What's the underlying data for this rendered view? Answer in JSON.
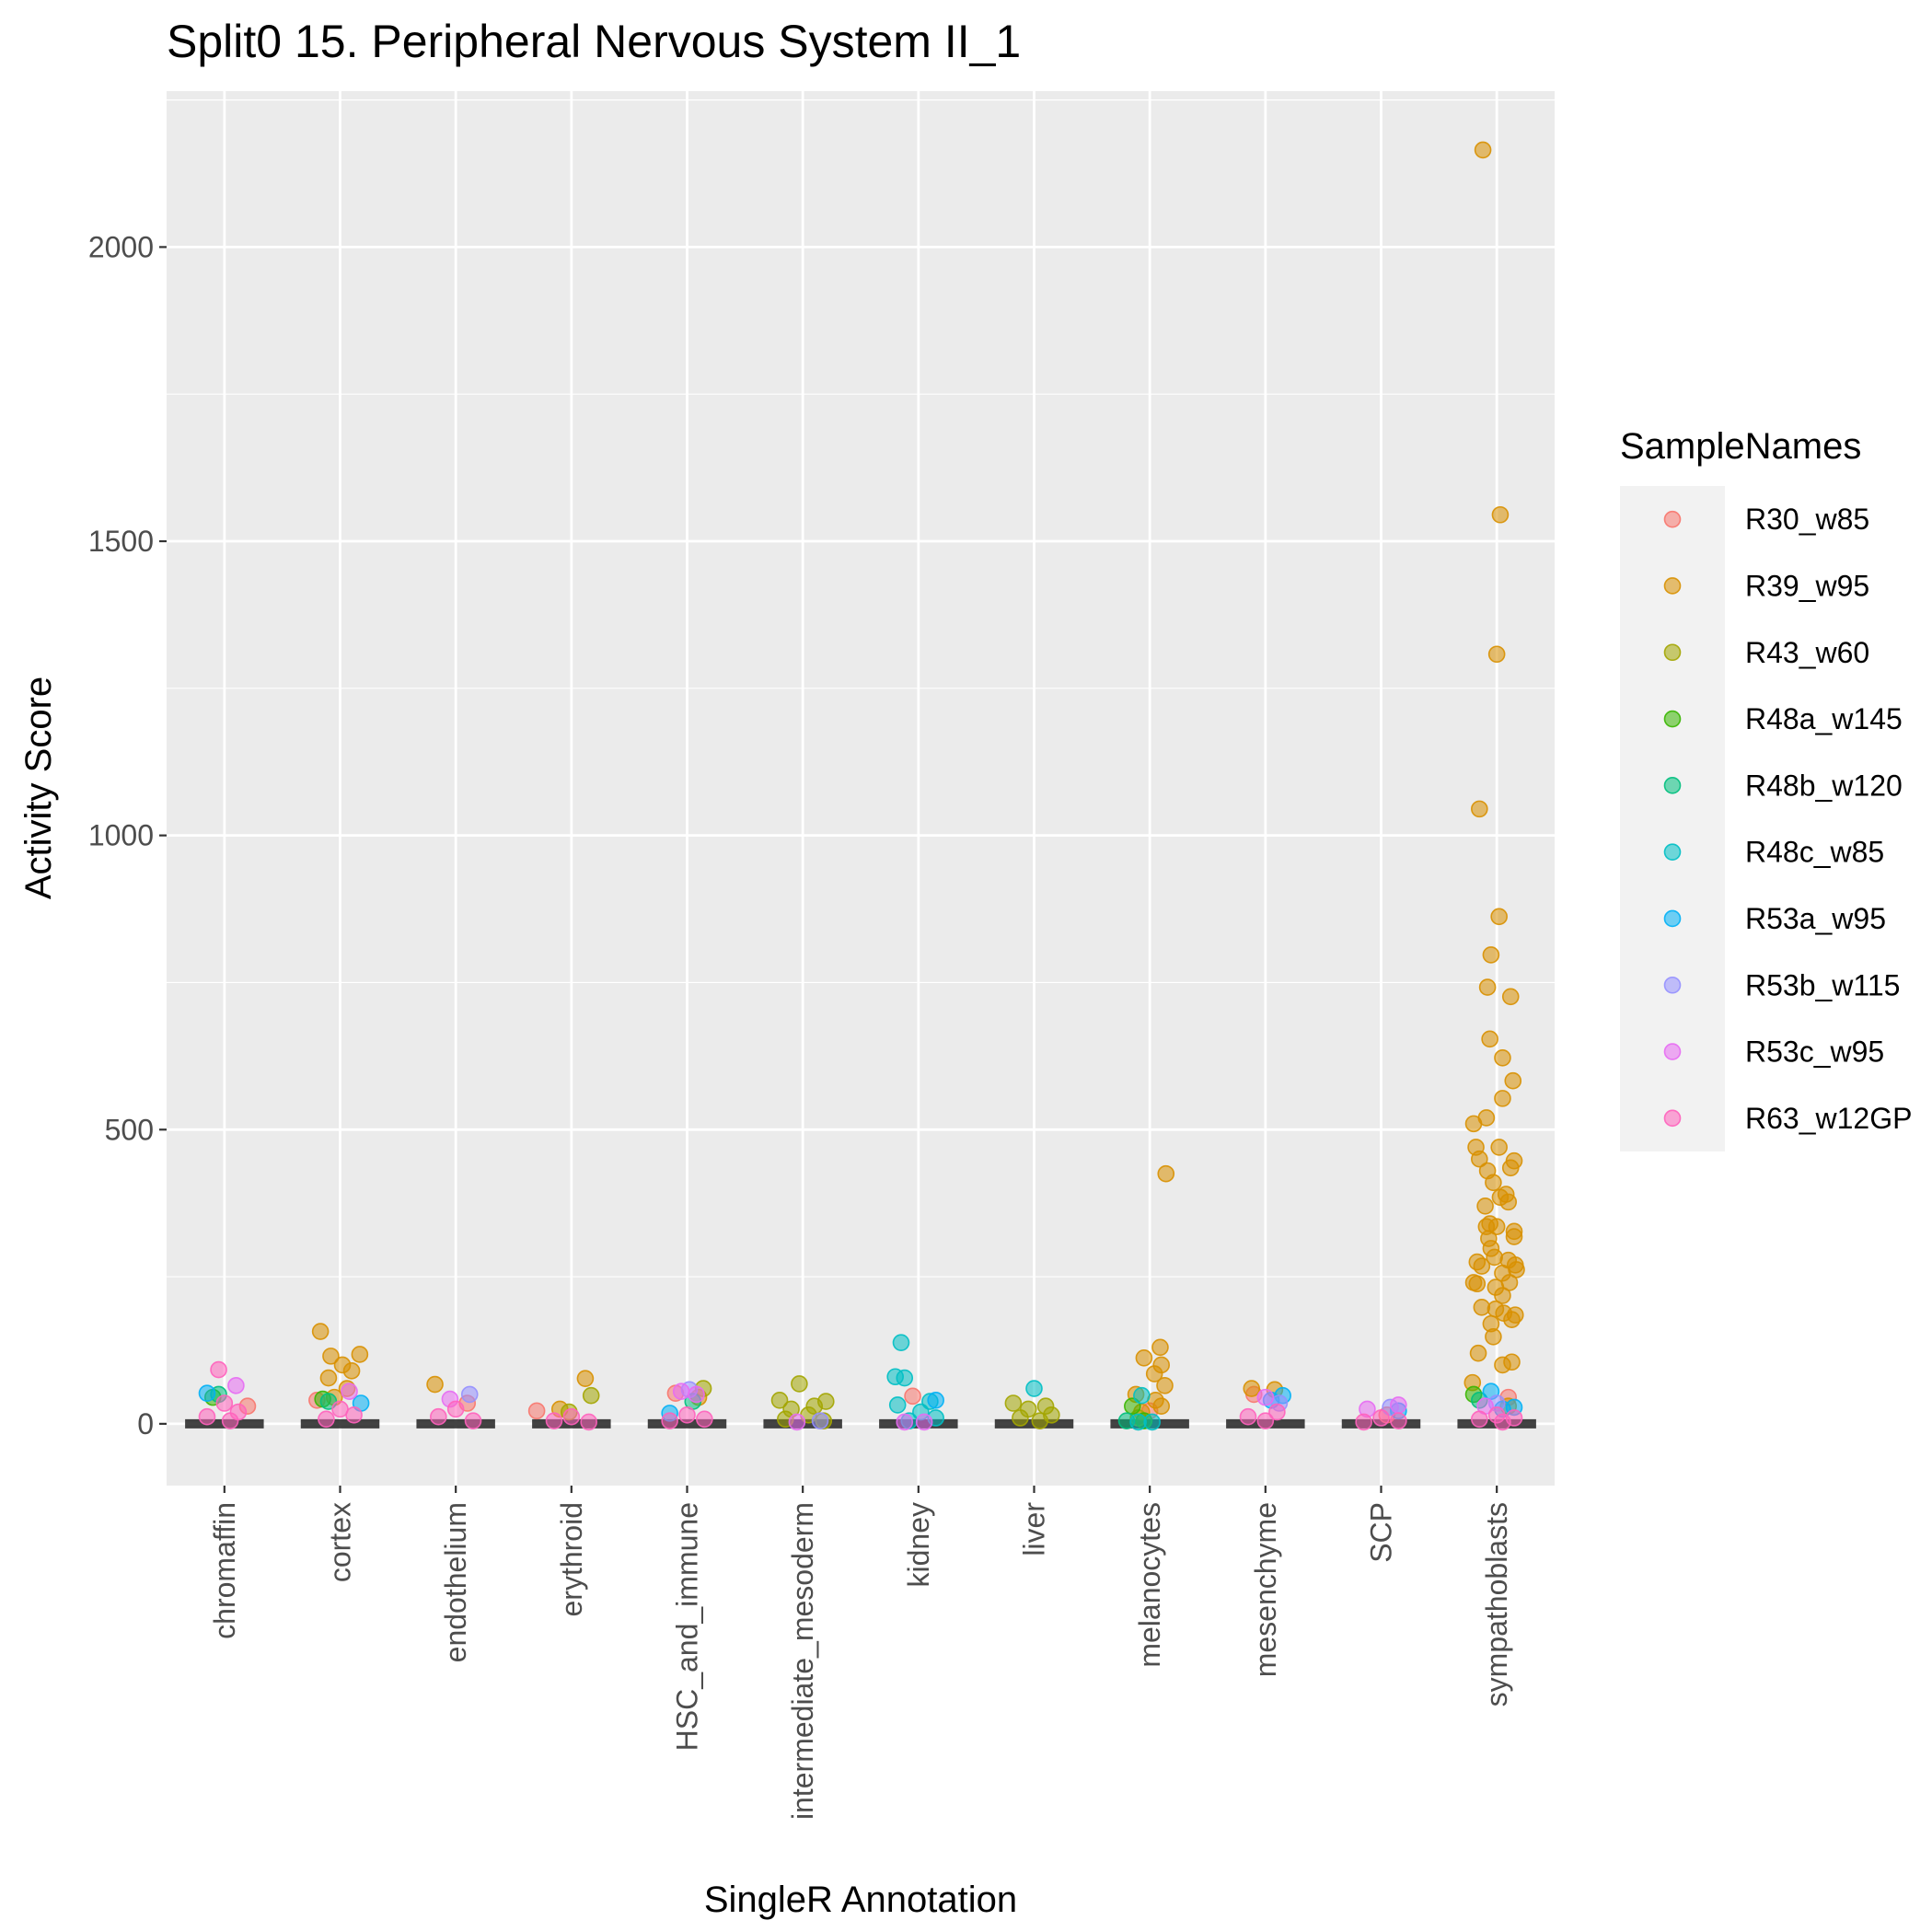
{
  "chart_data": {
    "type": "scatter",
    "title": "Split0 15. Peripheral Nervous System II_1",
    "xlabel": "SingleR Annotation",
    "ylabel": "Activity Score",
    "ylim": [
      -105,
      2265
    ],
    "yticks": [
      0,
      500,
      1000,
      1500,
      2000
    ],
    "grid": true,
    "categories": [
      "chromaffin",
      "cortex",
      "endothelium",
      "erythroid",
      "HSC_and_immune",
      "intermediate_mesoderm",
      "kidney",
      "liver",
      "melanocytes",
      "mesenchyme",
      "SCP",
      "sympathoblasts"
    ],
    "legend": {
      "title": "SampleNames",
      "position": "right",
      "entries": [
        "R30_w85",
        "R39_w95",
        "R43_w60",
        "R48a_w145",
        "R48b_w120",
        "R48c_w85",
        "R53a_w95",
        "R53b_w115",
        "R53c_w95",
        "R63_w12GP"
      ]
    },
    "colors": [
      "#F8766D",
      "#D89000",
      "#A3A500",
      "#39B600",
      "#00BF7D",
      "#00BFC4",
      "#00B0F6",
      "#9590FF",
      "#E76BF3",
      "#FF62BC"
    ],
    "series": [
      {
        "name": "R30_w85",
        "points": [
          [
            "chromaffin",
            0.2,
            30
          ],
          [
            "cortex",
            -0.2,
            40
          ],
          [
            "endothelium",
            0.1,
            35
          ],
          [
            "erythroid",
            -0.3,
            22
          ],
          [
            "HSC_and_immune",
            -0.1,
            52
          ],
          [
            "kidney",
            -0.05,
            47
          ],
          [
            "melanocytes",
            0.0,
            22
          ],
          [
            "mesenchyme",
            -0.1,
            50
          ],
          [
            "SCP",
            0.05,
            15
          ],
          [
            "sympathoblasts",
            0.1,
            45
          ]
        ]
      },
      {
        "name": "R39_w95",
        "points": [
          [
            "cortex",
            -0.17,
            157
          ],
          [
            "cortex",
            -0.08,
            115
          ],
          [
            "cortex",
            0.17,
            118
          ],
          [
            "cortex",
            0.1,
            90
          ],
          [
            "cortex",
            0.02,
            100
          ],
          [
            "cortex",
            -0.1,
            78
          ],
          [
            "cortex",
            0.06,
            60
          ],
          [
            "cortex",
            -0.05,
            45
          ],
          [
            "endothelium",
            -0.18,
            67
          ],
          [
            "erythroid",
            0.12,
            77
          ],
          [
            "erythroid",
            -0.1,
            25
          ],
          [
            "HSC_and_immune",
            0.1,
            45
          ],
          [
            "melanocytes",
            0.14,
            425
          ],
          [
            "melanocytes",
            -0.05,
            112
          ],
          [
            "melanocytes",
            0.09,
            130
          ],
          [
            "melanocytes",
            0.1,
            100
          ],
          [
            "melanocytes",
            0.04,
            85
          ],
          [
            "melanocytes",
            0.13,
            65
          ],
          [
            "melanocytes",
            -0.12,
            50
          ],
          [
            "melanocytes",
            0.05,
            40
          ],
          [
            "melanocytes",
            0.1,
            30
          ],
          [
            "melanocytes",
            -0.07,
            20
          ],
          [
            "mesenchyme",
            -0.12,
            60
          ],
          [
            "mesenchyme",
            0.08,
            58
          ],
          [
            "sympathoblasts",
            -0.12,
            2165
          ],
          [
            "sympathoblasts",
            0.03,
            1545
          ],
          [
            "sympathoblasts",
            0.0,
            1308
          ],
          [
            "sympathoblasts",
            -0.15,
            1045
          ],
          [
            "sympathoblasts",
            0.02,
            862
          ],
          [
            "sympathoblasts",
            -0.05,
            797
          ],
          [
            "sympathoblasts",
            -0.08,
            742
          ],
          [
            "sympathoblasts",
            0.12,
            726
          ],
          [
            "sympathoblasts",
            -0.06,
            654
          ],
          [
            "sympathoblasts",
            0.05,
            622
          ],
          [
            "sympathoblasts",
            0.14,
            583
          ],
          [
            "sympathoblasts",
            0.05,
            553
          ],
          [
            "sympathoblasts",
            -0.09,
            520
          ],
          [
            "sympathoblasts",
            -0.2,
            510
          ],
          [
            "sympathoblasts",
            0.02,
            470
          ],
          [
            "sympathoblasts",
            -0.18,
            470
          ],
          [
            "sympathoblasts",
            0.15,
            447
          ],
          [
            "sympathoblasts",
            -0.15,
            450
          ],
          [
            "sympathoblasts",
            0.12,
            435
          ],
          [
            "sympathoblasts",
            -0.08,
            430
          ],
          [
            "sympathoblasts",
            -0.03,
            410
          ],
          [
            "sympathoblasts",
            0.08,
            390
          ],
          [
            "sympathoblasts",
            0.03,
            385
          ],
          [
            "sympathoblasts",
            0.1,
            377
          ],
          [
            "sympathoblasts",
            -0.1,
            370
          ],
          [
            "sympathoblasts",
            -0.06,
            340
          ],
          [
            "sympathoblasts",
            -0.09,
            335
          ],
          [
            "sympathoblasts",
            0.0,
            335
          ],
          [
            "sympathoblasts",
            0.15,
            327
          ],
          [
            "sympathoblasts",
            0.15,
            318
          ],
          [
            "sympathoblasts",
            -0.07,
            315
          ],
          [
            "sympathoblasts",
            -0.05,
            298
          ],
          [
            "sympathoblasts",
            -0.02,
            283
          ],
          [
            "sympathoblasts",
            0.1,
            278
          ],
          [
            "sympathoblasts",
            -0.17,
            275
          ],
          [
            "sympathoblasts",
            0.16,
            270
          ],
          [
            "sympathoblasts",
            -0.13,
            268
          ],
          [
            "sympathoblasts",
            0.17,
            262
          ],
          [
            "sympathoblasts",
            0.05,
            256
          ],
          [
            "sympathoblasts",
            -0.2,
            240
          ],
          [
            "sympathoblasts",
            0.11,
            240
          ],
          [
            "sympathoblasts",
            -0.17,
            238
          ],
          [
            "sympathoblasts",
            -0.01,
            232
          ],
          [
            "sympathoblasts",
            0.05,
            218
          ],
          [
            "sympathoblasts",
            -0.13,
            198
          ],
          [
            "sympathoblasts",
            -0.01,
            195
          ],
          [
            "sympathoblasts",
            0.06,
            188
          ],
          [
            "sympathoblasts",
            0.16,
            185
          ],
          [
            "sympathoblasts",
            0.13,
            177
          ],
          [
            "sympathoblasts",
            -0.05,
            170
          ],
          [
            "sympathoblasts",
            -0.03,
            148
          ],
          [
            "sympathoblasts",
            -0.16,
            120
          ],
          [
            "sympathoblasts",
            0.13,
            105
          ],
          [
            "sympathoblasts",
            0.05,
            100
          ],
          [
            "sympathoblasts",
            -0.21,
            70
          ],
          [
            "sympathoblasts",
            0.1,
            30
          ]
        ]
      },
      {
        "name": "R43_w60",
        "points": [
          [
            "erythroid",
            0.17,
            48
          ],
          [
            "erythroid",
            -0.02,
            20
          ],
          [
            "HSC_and_immune",
            0.14,
            60
          ],
          [
            "intermediate_mesoderm",
            -0.03,
            68
          ],
          [
            "intermediate_mesoderm",
            -0.2,
            40
          ],
          [
            "intermediate_mesoderm",
            0.2,
            38
          ],
          [
            "intermediate_mesoderm",
            0.1,
            30
          ],
          [
            "intermediate_mesoderm",
            -0.1,
            25
          ],
          [
            "intermediate_mesoderm",
            0.05,
            15
          ],
          [
            "intermediate_mesoderm",
            -0.15,
            8
          ],
          [
            "intermediate_mesoderm",
            0.18,
            5
          ],
          [
            "liver",
            -0.18,
            35
          ],
          [
            "liver",
            0.1,
            30
          ],
          [
            "liver",
            -0.05,
            25
          ],
          [
            "liver",
            0.15,
            15
          ],
          [
            "liver",
            -0.12,
            10
          ],
          [
            "liver",
            0.05,
            5
          ],
          [
            "melanocytes",
            -0.1,
            10
          ]
        ]
      },
      {
        "name": "R48a_w145",
        "points": [
          [
            "chromaffin",
            -0.1,
            45
          ],
          [
            "cortex",
            -0.15,
            42
          ],
          [
            "melanocytes",
            -0.15,
            30
          ],
          [
            "melanocytes",
            -0.05,
            5
          ],
          [
            "sympathoblasts",
            -0.2,
            50
          ]
        ]
      },
      {
        "name": "R48b_w120",
        "points": [
          [
            "chromaffin",
            -0.05,
            50
          ],
          [
            "cortex",
            -0.1,
            38
          ],
          [
            "HSC_and_immune",
            0.05,
            38
          ],
          [
            "melanocytes",
            -0.2,
            5
          ],
          [
            "sympathoblasts",
            -0.15,
            40
          ]
        ]
      },
      {
        "name": "R48c_w85",
        "points": [
          [
            "kidney",
            -0.15,
            138
          ],
          [
            "kidney",
            -0.2,
            80
          ],
          [
            "kidney",
            -0.12,
            78
          ],
          [
            "kidney",
            0.1,
            38
          ],
          [
            "kidney",
            -0.18,
            32
          ],
          [
            "kidney",
            0.02,
            20
          ],
          [
            "kidney",
            0.15,
            10
          ],
          [
            "kidney",
            -0.08,
            5
          ],
          [
            "liver",
            0.0,
            60
          ],
          [
            "melanocytes",
            -0.07,
            48
          ],
          [
            "melanocytes",
            -0.1,
            3
          ],
          [
            "melanocytes",
            0.02,
            3
          ]
        ]
      },
      {
        "name": "R53a_w95",
        "points": [
          [
            "chromaffin",
            -0.15,
            52
          ],
          [
            "cortex",
            0.18,
            35
          ],
          [
            "HSC_and_immune",
            -0.15,
            18
          ],
          [
            "kidney",
            0.15,
            40
          ],
          [
            "mesenchyme",
            0.15,
            48
          ],
          [
            "mesenchyme",
            0.05,
            40
          ],
          [
            "SCP",
            0.15,
            22
          ],
          [
            "sympathoblasts",
            0.05,
            25
          ],
          [
            "sympathoblasts",
            0.15,
            28
          ],
          [
            "sympathoblasts",
            -0.05,
            55
          ]
        ]
      },
      {
        "name": "R53b_w115",
        "points": [
          [
            "endothelium",
            0.12,
            50
          ],
          [
            "HSC_and_immune",
            0.02,
            58
          ],
          [
            "intermediate_mesoderm",
            0.15,
            5
          ],
          [
            "mesenchyme",
            0.12,
            35
          ],
          [
            "SCP",
            0.08,
            28
          ],
          [
            "sympathoblasts",
            0.0,
            35
          ]
        ]
      },
      {
        "name": "R53c_w95",
        "points": [
          [
            "chromaffin",
            0.1,
            65
          ],
          [
            "cortex",
            0.08,
            55
          ],
          [
            "endothelium",
            -0.05,
            42
          ],
          [
            "HSC_and_immune",
            -0.05,
            55
          ],
          [
            "HSC_and_immune",
            0.08,
            50
          ],
          [
            "intermediate_mesoderm",
            -0.05,
            3
          ],
          [
            "kidney",
            -0.12,
            3
          ],
          [
            "kidney",
            0.05,
            3
          ],
          [
            "mesenchyme",
            0.0,
            45
          ],
          [
            "SCP",
            -0.12,
            25
          ],
          [
            "SCP",
            0.15,
            32
          ],
          [
            "sympathoblasts",
            -0.1,
            30
          ]
        ]
      },
      {
        "name": "R63_w12GP",
        "points": [
          [
            "chromaffin",
            -0.05,
            92
          ],
          [
            "chromaffin",
            0.0,
            35
          ],
          [
            "chromaffin",
            0.12,
            20
          ],
          [
            "chromaffin",
            -0.15,
            12
          ],
          [
            "chromaffin",
            0.05,
            5
          ],
          [
            "cortex",
            0.0,
            25
          ],
          [
            "cortex",
            0.12,
            15
          ],
          [
            "cortex",
            -0.12,
            8
          ],
          [
            "endothelium",
            0.0,
            25
          ],
          [
            "endothelium",
            -0.15,
            12
          ],
          [
            "endothelium",
            0.15,
            5
          ],
          [
            "erythroid",
            0.0,
            12
          ],
          [
            "erythroid",
            -0.15,
            5
          ],
          [
            "erythroid",
            0.15,
            3
          ],
          [
            "HSC_and_immune",
            0.0,
            15
          ],
          [
            "HSC_and_immune",
            -0.15,
            5
          ],
          [
            "HSC_and_immune",
            0.15,
            8
          ],
          [
            "mesenchyme",
            -0.15,
            12
          ],
          [
            "mesenchyme",
            0.1,
            20
          ],
          [
            "mesenchyme",
            0.0,
            5
          ],
          [
            "SCP",
            0.0,
            10
          ],
          [
            "SCP",
            -0.15,
            3
          ],
          [
            "SCP",
            0.15,
            5
          ],
          [
            "sympathoblasts",
            0.0,
            15
          ],
          [
            "sympathoblasts",
            -0.15,
            8
          ],
          [
            "sympathoblasts",
            0.15,
            10
          ],
          [
            "sympathoblasts",
            0.05,
            3
          ]
        ]
      }
    ]
  }
}
